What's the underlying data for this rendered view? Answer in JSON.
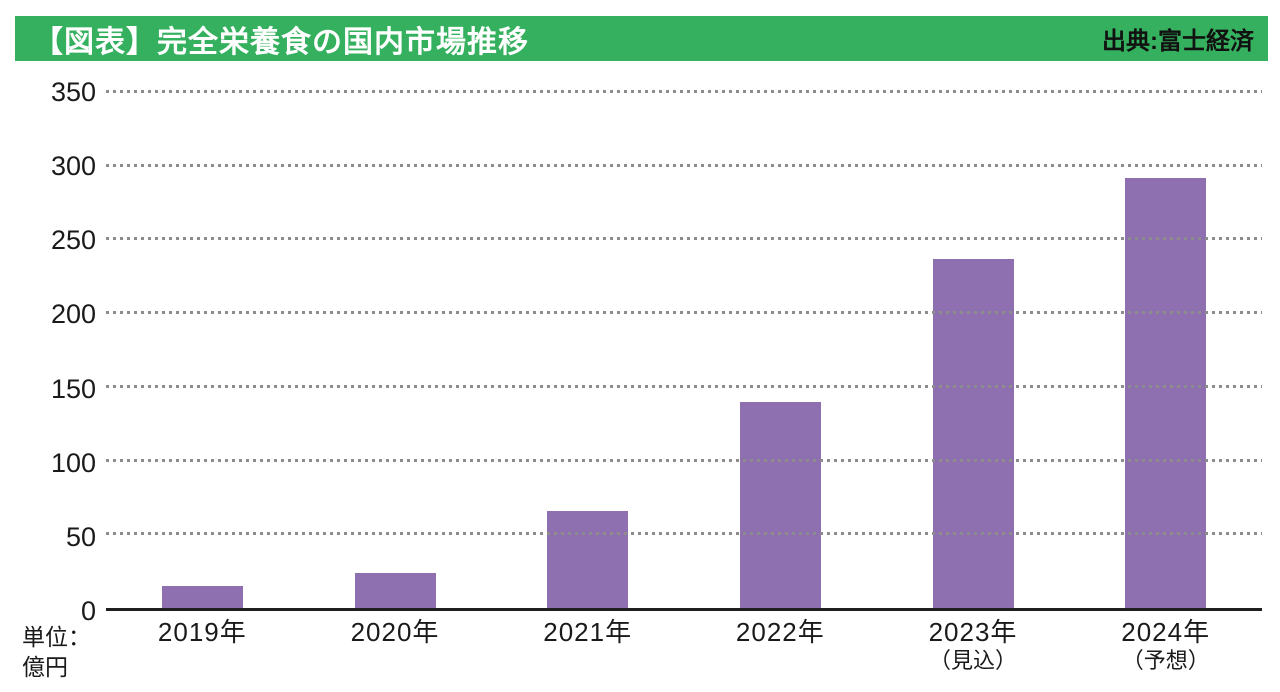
{
  "header": {
    "title": "【図表】完全栄養食の国内市場推移",
    "source": "出典:富士経済"
  },
  "unit_label": {
    "line1": "単位：",
    "line2": "億円"
  },
  "colors": {
    "header_bg": "#35b05e",
    "header_title": "#ffffff",
    "header_source": "#111111",
    "bar": "#8e6fb0",
    "gridline": "#8c8c8c",
    "axis": "#1f1f1f",
    "text": "#1a1a1a"
  },
  "chart_data": {
    "type": "bar",
    "title": "【図表】完全栄養食の国内市場推移",
    "source": "出典:富士経済",
    "unit": "億円",
    "categories": [
      "2019年",
      "2020年",
      "2021年",
      "2022年",
      "2023年",
      "2024年"
    ],
    "category_sublabels": [
      "",
      "",
      "",
      "",
      "（見込）",
      "（予想）"
    ],
    "values": [
      15,
      24,
      66,
      140,
      237,
      292
    ],
    "ylim": [
      0,
      350
    ],
    "yticks": [
      0,
      50,
      100,
      150,
      200,
      250,
      300,
      350
    ],
    "grid": "dotted-horizontal",
    "legend": "none"
  }
}
